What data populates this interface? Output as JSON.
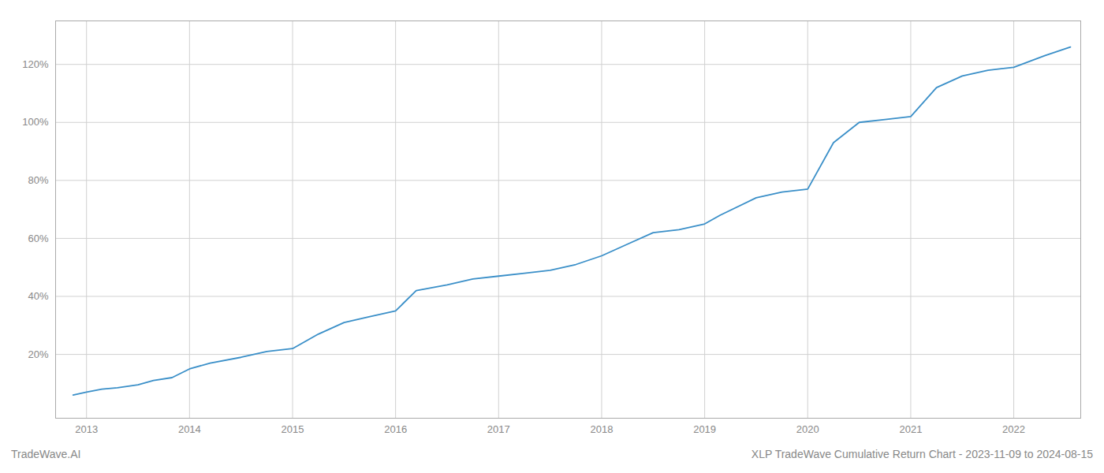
{
  "chart_data": {
    "type": "line",
    "annotations": [
      "TradeWave.AI",
      "XLP TradeWave Cumulative Return Chart - 2023-11-09 to 2024-08-15"
    ],
    "color": "#3a8fc8",
    "x": [
      2012.87,
      2013.0,
      2013.15,
      2013.3,
      2013.5,
      2013.65,
      2013.83,
      2014.0,
      2014.2,
      2014.5,
      2014.75,
      2015.0,
      2015.25,
      2015.5,
      2015.75,
      2016.0,
      2016.2,
      2016.5,
      2016.75,
      2017.0,
      2017.25,
      2017.5,
      2017.75,
      2018.0,
      2018.25,
      2018.5,
      2018.75,
      2019.0,
      2019.15,
      2019.5,
      2019.75,
      2020.0,
      2020.25,
      2020.5,
      2020.75,
      2021.0,
      2021.25,
      2021.5,
      2021.75,
      2022.0,
      2022.3,
      2022.55
    ],
    "values": [
      6,
      7,
      8,
      8.5,
      9.5,
      11,
      12,
      15,
      17,
      19,
      21,
      22,
      27,
      31,
      33,
      35,
      42,
      44,
      46,
      47,
      48,
      49,
      51,
      54,
      58,
      62,
      63,
      65,
      68,
      74,
      76,
      77,
      93,
      100,
      101,
      102,
      112,
      116,
      118,
      119,
      123,
      126
    ],
    "xlim": [
      2012.7,
      2022.65
    ],
    "xticks": [
      2013,
      2014,
      2015,
      2016,
      2017,
      2018,
      2019,
      2020,
      2021,
      2022
    ],
    "ylim": [
      -2,
      135
    ],
    "yticks": [
      {
        "value": 20,
        "label": "20%"
      },
      {
        "value": 40,
        "label": "40%"
      },
      {
        "value": 60,
        "label": "60%"
      },
      {
        "value": 80,
        "label": "80%"
      },
      {
        "value": 100,
        "label": "100%"
      },
      {
        "value": 120,
        "label": "120%"
      }
    ],
    "grid": true
  }
}
